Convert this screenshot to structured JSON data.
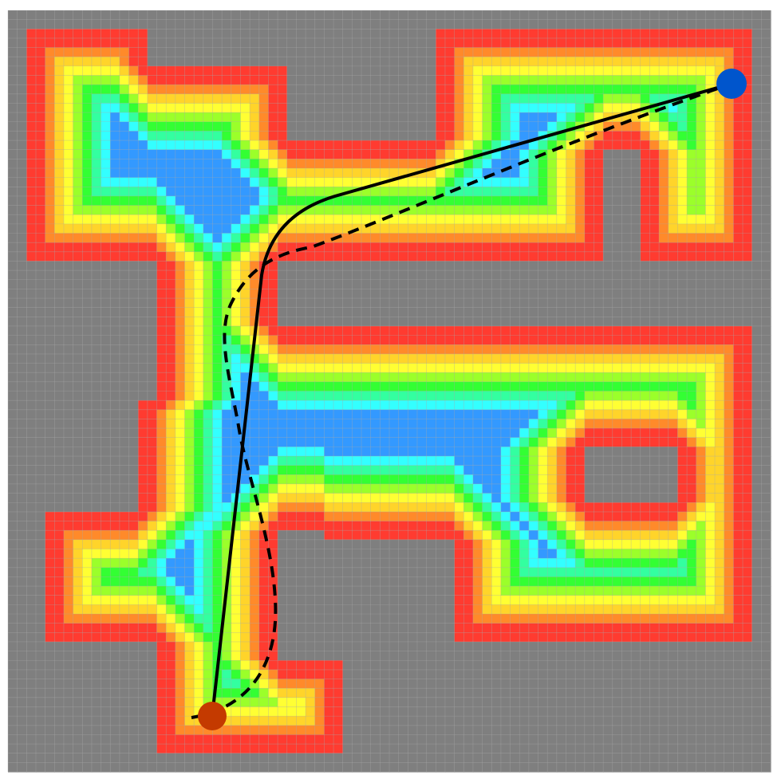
{
  "map": {
    "grid": {
      "cols": 82,
      "rows": 82,
      "walkable_cells": [
        {
          "col0": 2,
          "row0": 2,
          "col1": 15,
          "row1": 27
        },
        {
          "col0": 2,
          "row0": 6,
          "col1": 30,
          "row1": 27
        },
        {
          "col0": 2,
          "row0": 14,
          "col1": 64,
          "row1": 27
        },
        {
          "col0": 46,
          "row0": 2,
          "col1": 80,
          "row1": 15
        },
        {
          "col0": 68,
          "row0": 14,
          "col1": 80,
          "row1": 27
        },
        {
          "col0": 16,
          "row0": 27,
          "col1": 29,
          "row1": 42
        },
        {
          "col0": 16,
          "row0": 34,
          "col1": 80,
          "row1": 56
        },
        {
          "col0": 14,
          "row0": 42,
          "col1": 29,
          "row1": 56
        },
        {
          "col0": 4,
          "row0": 54,
          "col1": 29,
          "row1": 68
        },
        {
          "col0": 16,
          "row0": 68,
          "col1": 29,
          "row1": 80
        },
        {
          "col0": 29,
          "row0": 70,
          "col1": 36,
          "row1": 80
        },
        {
          "col0": 34,
          "row0": 54,
          "col1": 80,
          "row1": 57
        },
        {
          "col0": 48,
          "row0": 56,
          "col1": 80,
          "row1": 68
        }
      ],
      "blocked_cells": [
        {
          "col0": 62,
          "row0": 47,
          "col1": 72,
          "row1": 53
        },
        {
          "col0": 64,
          "row0": 16,
          "col1": 67,
          "row1": 27
        }
      ]
    },
    "colors": {
      "obstacle": "#7f7f7f",
      "grid_line": "#a9a9a9",
      "costmap_scale": [
        "#ff3b30",
        "#ff8a2a",
        "#ffd42a",
        "#ffff33",
        "#9bff2a",
        "#33ff33",
        "#33ffa0",
        "#33ffff",
        "#3399ff"
      ]
    },
    "start": {
      "color": "#c43a00"
    },
    "goal": {
      "color": "#0055cc"
    },
    "paths": [
      {
        "id": "solid-path",
        "style": "solid",
        "color": "#000000"
      },
      {
        "id": "dashed-path",
        "style": "dashed",
        "color": "#000000"
      }
    ]
  }
}
